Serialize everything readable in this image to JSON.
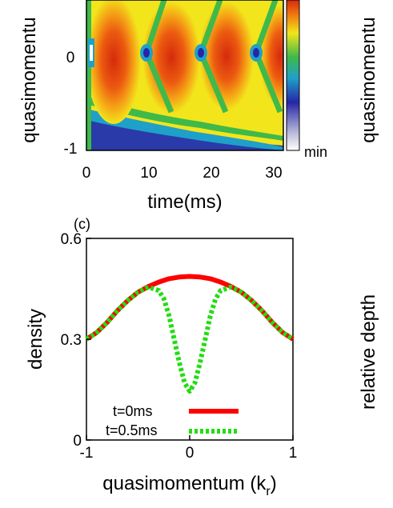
{
  "heatmap_panel": {
    "chart_data": {
      "type": "heatmap",
      "xlabel": "time(ms)",
      "ylabel": "quasimomentu",
      "x_ticks": [
        "0",
        "10",
        "20",
        "30"
      ],
      "y_ticks": [
        "0",
        "-1"
      ],
      "xlim": [
        0,
        31
      ],
      "colorbar_label_min": "min",
      "colormap": [
        "#ffffff",
        "#2626a8",
        "#1fa0c8",
        "#3fb94a",
        "#f2e51c",
        "#f07a10",
        "#d52b0c"
      ]
    }
  },
  "density_panel": {
    "panel_label": "(c)",
    "chart_data": {
      "type": "line",
      "xlabel": "quasimomentum (k",
      "xlabel_sub": "r",
      "xlabel_close": ")",
      "ylabel": "density",
      "x_ticks": [
        "-1",
        "0",
        "1"
      ],
      "y_ticks": [
        "0",
        "0.3",
        "0.6"
      ],
      "xlim": [
        -1,
        1
      ],
      "ylim": [
        0,
        0.6
      ],
      "series": [
        {
          "name": "t=0ms",
          "color": "#ff0000",
          "style": "solid",
          "x": [
            -1,
            -0.9,
            -0.8,
            -0.7,
            -0.6,
            -0.5,
            -0.4,
            -0.3,
            -0.2,
            -0.1,
            0,
            0.1,
            0.2,
            0.3,
            0.4,
            0.5,
            0.6,
            0.7,
            0.8,
            0.9,
            1
          ],
          "y": [
            0.3,
            0.32,
            0.35,
            0.385,
            0.415,
            0.44,
            0.457,
            0.47,
            0.48,
            0.485,
            0.487,
            0.485,
            0.48,
            0.47,
            0.457,
            0.44,
            0.415,
            0.385,
            0.35,
            0.32,
            0.3
          ]
        },
        {
          "name": "t=0.5ms",
          "color": "#22dd11",
          "style": "dotted",
          "x": [
            -1,
            -0.9,
            -0.8,
            -0.7,
            -0.6,
            -0.5,
            -0.4,
            -0.3,
            -0.25,
            -0.2,
            -0.15,
            -0.1,
            -0.05,
            0,
            0.05,
            0.1,
            0.15,
            0.2,
            0.25,
            0.3,
            0.4,
            0.5,
            0.6,
            0.7,
            0.8,
            0.9,
            1
          ],
          "y": [
            0.3,
            0.32,
            0.35,
            0.385,
            0.415,
            0.44,
            0.455,
            0.445,
            0.42,
            0.37,
            0.3,
            0.23,
            0.17,
            0.145,
            0.17,
            0.23,
            0.3,
            0.37,
            0.42,
            0.445,
            0.455,
            0.44,
            0.415,
            0.385,
            0.35,
            0.32,
            0.3
          ]
        }
      ]
    }
  },
  "right_labels": {
    "top_ylabel": "quasimomentu",
    "bottom_ylabel": "relative depth"
  }
}
